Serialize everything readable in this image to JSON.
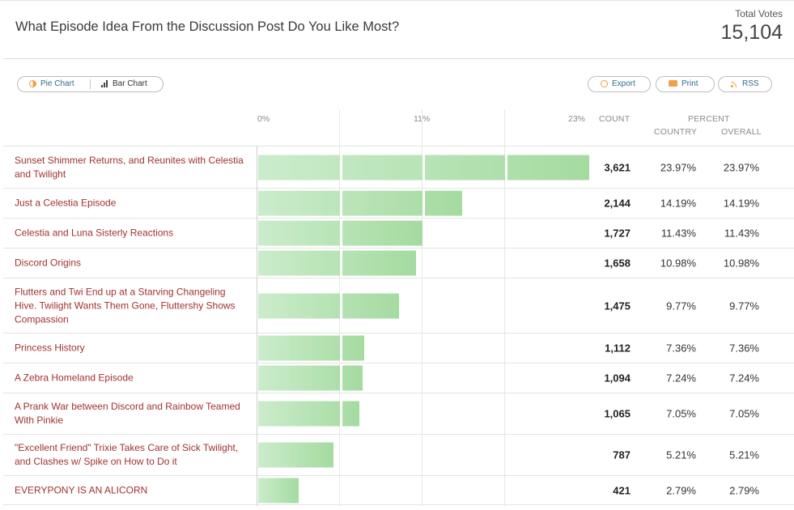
{
  "header": {
    "title": "What Episode Idea From the Discussion Post Do You Like Most?",
    "total_votes_label": "Total Votes",
    "total_votes_value": "15,104"
  },
  "toolbar": {
    "pie_chart_label": "Pie Chart",
    "bar_chart_label": "Bar Chart",
    "export_label": "Export",
    "print_label": "Print",
    "rss_label": "RSS"
  },
  "columns": {
    "count": "COUNT",
    "percent": "PERCENT",
    "country": "COUNTRY",
    "overall": "OVERALL"
  },
  "colors": {
    "label": "#a0322f",
    "bar_start": "#cbeccb",
    "bar_end": "#a4dba0",
    "accent": "#f0a04b"
  },
  "chart_data": {
    "type": "bar",
    "orientation": "horizontal",
    "title": "What Episode Idea From the Discussion Post Do You Like Most?",
    "axis_ticks": [
      "0%",
      "11%",
      "23%"
    ],
    "xlim": [
      0,
      23
    ],
    "categories": [
      "Sunset Shimmer Returns, and Reunites with Celestia and Twilight",
      "Just a Celestia Episode",
      "Celestia and Luna Sisterly Reactions",
      "Discord Origins",
      "Flutters and Twi End up at a Starving Changeling Hive. Twilight Wants Them Gone, Fluttershy Shows Compassion",
      "Princess History",
      "A Zebra Homeland Episode",
      "A Prank War between Discord and Rainbow Teamed With Pinkie",
      "\"Excellent Friend\" Trixie Takes Care of Sick Twilight, and Clashes w/ Spike on How to Do it",
      "EVERYPONY IS AN ALICORN"
    ],
    "values": [
      23.97,
      14.19,
      11.43,
      10.98,
      9.77,
      7.36,
      7.24,
      7.05,
      5.21,
      2.79
    ],
    "counts": [
      "3,621",
      "2,144",
      "1,727",
      "1,658",
      "1,475",
      "1,112",
      "1,094",
      "1,065",
      "787",
      "421"
    ],
    "percent_country": [
      "23.97%",
      "14.19%",
      "11.43%",
      "10.98%",
      "9.77%",
      "7.36%",
      "7.24%",
      "7.05%",
      "5.21%",
      "2.79%"
    ],
    "percent_overall": [
      "23.97%",
      "14.19%",
      "11.43%",
      "10.98%",
      "9.77%",
      "7.36%",
      "7.24%",
      "7.05%",
      "5.21%",
      "2.79%"
    ]
  }
}
